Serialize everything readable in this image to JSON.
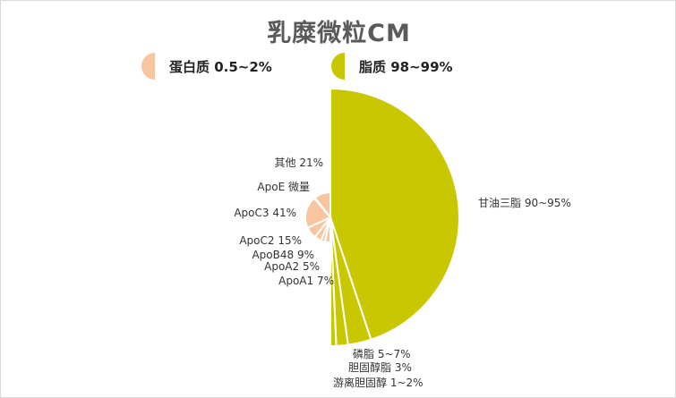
{
  "colors": {
    "protein": "#F7C59F",
    "lipid": "#C9C800",
    "border": "#ffffff"
  },
  "chart_data": {
    "type": "pie",
    "title": "乳糜微粒CM",
    "legend": [
      {
        "name": "蛋白质 0.5~2%",
        "color": "#F7C59F",
        "placement": "top-left"
      },
      {
        "name": "脂质 98~99%",
        "color": "#C9C800",
        "placement": "top-center"
      }
    ],
    "groups": [
      {
        "name": "脂质 98~99%",
        "side": "right",
        "slices": [
          {
            "label": "甘油三脂 90~95%",
            "value": 92.5
          },
          {
            "label": "磷脂 5~7%",
            "value": 6
          },
          {
            "label": "胆固醇脂 3%",
            "value": 3
          },
          {
            "label": "游离胆固醇 1~2%",
            "value": 1.5
          }
        ]
      },
      {
        "name": "蛋白质 0.5~2%",
        "side": "left",
        "slices": [
          {
            "label": "ApoA1 7%",
            "value": 7
          },
          {
            "label": "ApoA2 5%",
            "value": 5
          },
          {
            "label": "ApoB48 9%",
            "value": 9
          },
          {
            "label": "ApoC2 15%",
            "value": 15
          },
          {
            "label": "ApoC3 41%",
            "value": 41
          },
          {
            "label": "ApoE 微量",
            "value": 1
          },
          {
            "label": "其他 21%",
            "value": 21
          }
        ]
      }
    ]
  }
}
